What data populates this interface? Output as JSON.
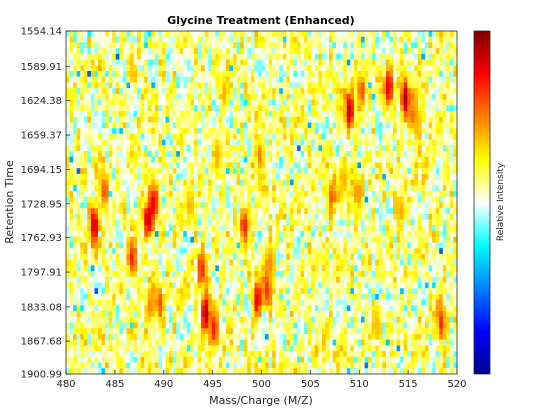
{
  "chart_data": {
    "type": "heatmap",
    "title": "Glycine Treatment (Enhanced)",
    "xlabel": "Mass/Charge (M/Z)",
    "ylabel": "Retention Time",
    "colorbar_label": "Relative Intensity",
    "colormap": "jet",
    "xlim": [
      480,
      520
    ],
    "ylim": [
      1554.14,
      1900.99
    ],
    "y_reversed": true,
    "x_ticks": [
      480,
      485,
      490,
      495,
      500,
      505,
      510,
      515,
      520
    ],
    "y_ticks": [
      1554.14,
      1589.91,
      1624.38,
      1659.37,
      1694.15,
      1728.95,
      1762.93,
      1797.91,
      1833.08,
      1867.68,
      1900.99
    ],
    "background_intensity": 0.55,
    "peaks": [
      {
        "mz": 482.9,
        "rt": 1750,
        "intensity": 0.95
      },
      {
        "mz": 483.9,
        "rt": 1716,
        "intensity": 0.8
      },
      {
        "mz": 486.8,
        "rt": 1784,
        "intensity": 0.85
      },
      {
        "mz": 488.4,
        "rt": 1745,
        "intensity": 0.97
      },
      {
        "mz": 489.0,
        "rt": 1728,
        "intensity": 0.9
      },
      {
        "mz": 489.6,
        "rt": 1828,
        "intensity": 0.8
      },
      {
        "mz": 488.6,
        "rt": 1833,
        "intensity": 0.75
      },
      {
        "mz": 494.3,
        "rt": 1840,
        "intensity": 0.98
      },
      {
        "mz": 493.9,
        "rt": 1795,
        "intensity": 0.85
      },
      {
        "mz": 495.1,
        "rt": 1855,
        "intensity": 0.85
      },
      {
        "mz": 498.3,
        "rt": 1752,
        "intensity": 0.85
      },
      {
        "mz": 499.6,
        "rt": 1826,
        "intensity": 0.92
      },
      {
        "mz": 500.6,
        "rt": 1815,
        "intensity": 0.85
      },
      {
        "mz": 500.8,
        "rt": 1788,
        "intensity": 0.75
      },
      {
        "mz": 499.8,
        "rt": 1680,
        "intensity": 0.75
      },
      {
        "mz": 495.5,
        "rt": 1680,
        "intensity": 0.7
      },
      {
        "mz": 507.2,
        "rt": 1722,
        "intensity": 0.8
      },
      {
        "mz": 508.4,
        "rt": 1705,
        "intensity": 0.7
      },
      {
        "mz": 509.0,
        "rt": 1634,
        "intensity": 0.95
      },
      {
        "mz": 509.8,
        "rt": 1716,
        "intensity": 0.75
      },
      {
        "mz": 510.2,
        "rt": 1615,
        "intensity": 0.8
      },
      {
        "mz": 513.0,
        "rt": 1612,
        "intensity": 0.9
      },
      {
        "mz": 514.7,
        "rt": 1622,
        "intensity": 0.97
      },
      {
        "mz": 515.6,
        "rt": 1640,
        "intensity": 0.8
      },
      {
        "mz": 516.0,
        "rt": 1648,
        "intensity": 0.7
      },
      {
        "mz": 518.4,
        "rt": 1850,
        "intensity": 0.85
      },
      {
        "mz": 496.2,
        "rt": 1615,
        "intensity": 0.7
      },
      {
        "mz": 511.7,
        "rt": 1850,
        "intensity": 0.7
      },
      {
        "mz": 514.2,
        "rt": 1734,
        "intensity": 0.72
      },
      {
        "mz": 492.7,
        "rt": 1733,
        "intensity": 0.7
      }
    ]
  }
}
